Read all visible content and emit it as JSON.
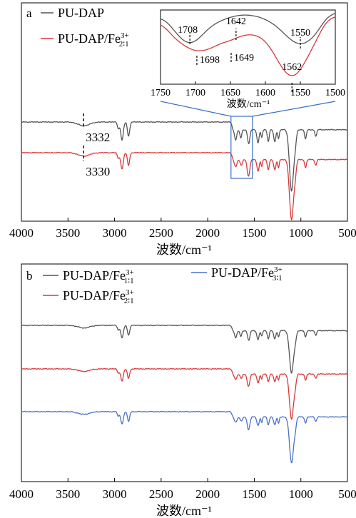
{
  "chart_data": [
    {
      "type": "line",
      "panel_label": "a",
      "xlabel": "波数/cm⁻¹",
      "xlim": [
        4000,
        500
      ],
      "x_ticks": [
        4000,
        3500,
        3000,
        2500,
        2000,
        1500,
        1000,
        500
      ],
      "ylabel": "",
      "legend": [
        {
          "base": "PU-DAP",
          "sup": "",
          "sub": "",
          "color": "#555555"
        },
        {
          "base": "PU-DAP/Fe",
          "sup": "3+",
          "sub": "2∶1",
          "color": "#d9383a"
        }
      ],
      "series": [
        {
          "name": "PU-DAP",
          "color": "#555555",
          "peaks_cm-1": [
            3332,
            2920,
            2850,
            1708,
            1642,
            1550,
            1460,
            1350,
            1280,
            1240,
            1100,
            950,
            840
          ]
        },
        {
          "name": "PU-DAP/Fe2:1",
          "color": "#d9383a",
          "peaks_cm-1": [
            3330,
            2920,
            2850,
            1698,
            1649,
            1562,
            1460,
            1350,
            1280,
            1240,
            1100,
            950,
            840
          ]
        }
      ],
      "annotations": [
        {
          "text": "3332",
          "x": 3332,
          "series": "PU-DAP"
        },
        {
          "text": "3330",
          "x": 3330,
          "series": "PU-DAP/Fe2:1"
        }
      ],
      "zoom_box_xlim": [
        1750,
        1520
      ],
      "inset": {
        "xlim": [
          1750,
          1500
        ],
        "x_ticks": [
          1750,
          1700,
          1650,
          1600,
          1550,
          1500
        ],
        "xlabel": "波数/cm⁻¹",
        "annotations": [
          {
            "text": "1708",
            "x": 1708,
            "series": "PU-DAP"
          },
          {
            "text": "1642",
            "x": 1642,
            "series": "PU-DAP"
          },
          {
            "text": "1550",
            "x": 1550,
            "series": "PU-DAP"
          },
          {
            "text": "1698",
            "x": 1698,
            "series": "PU-DAP/Fe2:1"
          },
          {
            "text": "1649",
            "x": 1649,
            "series": "PU-DAP/Fe2:1"
          },
          {
            "text": "1562",
            "x": 1562,
            "series": "PU-DAP/Fe2:1"
          }
        ]
      }
    },
    {
      "type": "line",
      "panel_label": "b",
      "xlabel": "波数/cm⁻¹",
      "xlim": [
        4000,
        500
      ],
      "x_ticks": [
        4000,
        3500,
        3000,
        2500,
        2000,
        1500,
        1000,
        500
      ],
      "ylabel": "",
      "legend": [
        {
          "base": "PU-DAP/Fe",
          "sup": "3+",
          "sub": "1∶1",
          "color": "#555555"
        },
        {
          "base": "PU-DAP/Fe",
          "sup": "3+",
          "sub": "2∶1",
          "color": "#d9383a"
        },
        {
          "base": "PU-DAP/Fe",
          "sup": "3+",
          "sub": "3∶1",
          "color": "#4a72c4"
        }
      ],
      "series": [
        {
          "name": "PU-DAP/Fe1:1",
          "color": "#555555",
          "peaks_cm-1": [
            2920,
            2850,
            1710,
            1640,
            1560,
            1460,
            1350,
            1280,
            1240,
            1100,
            950,
            840
          ]
        },
        {
          "name": "PU-DAP/Fe2:1",
          "color": "#d9383a",
          "peaks_cm-1": [
            2920,
            2850,
            1700,
            1645,
            1562,
            1460,
            1350,
            1280,
            1240,
            1100,
            950,
            840
          ]
        },
        {
          "name": "PU-DAP/Fe3:1",
          "color": "#4a72c4",
          "peaks_cm-1": [
            2920,
            2850,
            1700,
            1645,
            1562,
            1460,
            1350,
            1280,
            1240,
            1100,
            950,
            840
          ]
        }
      ]
    }
  ]
}
